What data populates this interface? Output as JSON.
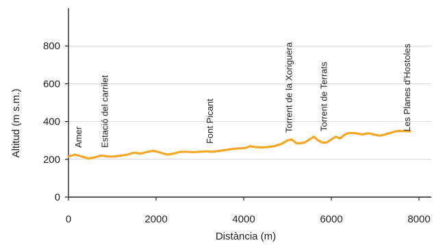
{
  "chart_data": {
    "type": "line",
    "title": "",
    "xlabel": "Distància (m)",
    "ylabel": "Altitud (m s.m.)",
    "xlim": [
      0,
      8200
    ],
    "ylim": [
      0,
      1000
    ],
    "x_ticks": [
      0,
      2000,
      4000,
      6000,
      8000
    ],
    "y_ticks": [
      0,
      200,
      400,
      600,
      800
    ],
    "grid": "horizontal",
    "legend": "none",
    "line_color": "#F5A623",
    "series": [
      {
        "x": [
          0,
          150,
          300,
          450,
          600,
          750,
          900,
          1050,
          1200,
          1350,
          1500,
          1650,
          1800,
          1950,
          2100,
          2250,
          2400,
          2550,
          2700,
          2850,
          3000,
          3150,
          3300,
          3450,
          3600,
          3750,
          3900,
          4050,
          4150,
          4250,
          4400,
          4550,
          4700,
          4850,
          5000,
          5100,
          5200,
          5300,
          5400,
          5500,
          5600,
          5700,
          5800,
          5900,
          6000,
          6100,
          6200,
          6300,
          6400,
          6550,
          6700,
          6850,
          7000,
          7100,
          7200,
          7350,
          7500,
          7650,
          7800
        ],
        "y": [
          215,
          225,
          215,
          205,
          210,
          220,
          215,
          215,
          220,
          225,
          235,
          230,
          240,
          245,
          235,
          225,
          230,
          240,
          240,
          238,
          240,
          242,
          240,
          245,
          250,
          255,
          258,
          260,
          270,
          265,
          263,
          265,
          270,
          280,
          300,
          305,
          285,
          285,
          290,
          305,
          320,
          300,
          288,
          290,
          305,
          320,
          310,
          330,
          340,
          338,
          332,
          338,
          330,
          325,
          330,
          340,
          350,
          350,
          348
        ]
      }
    ],
    "annotations": [
      {
        "label": "Amer",
        "x": 300
      },
      {
        "label": "Estació del carrilet",
        "x": 900
      },
      {
        "label": "Font Picant",
        "x": 3300
      },
      {
        "label": "Torrent de la Xoriguera",
        "x": 5100
      },
      {
        "label": "Torrent de Terrats",
        "x": 5900
      },
      {
        "label": "Les Planes d'Hostoles",
        "x": 7800
      }
    ]
  }
}
